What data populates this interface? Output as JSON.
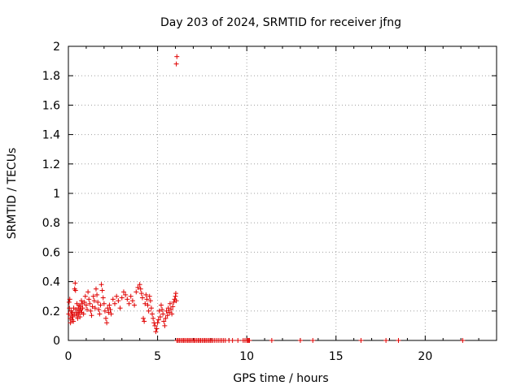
{
  "chart_data": {
    "type": "scatter",
    "title": "Day 203 of 2024, SRMTID for receiver jfng",
    "xlabel": "GPS time / hours",
    "ylabel": "SRMTID / TECUs",
    "xlim": [
      0,
      24
    ],
    "ylim": [
      0,
      2
    ],
    "xticks": [
      0,
      5,
      10,
      15,
      20
    ],
    "yticks": [
      0,
      0.2,
      0.4,
      0.6,
      0.8,
      1,
      1.2,
      1.4,
      1.6,
      1.8,
      2
    ],
    "grid": true,
    "marker": "+",
    "color": "#e00000",
    "series": [
      {
        "x": [
          0.02,
          0.04,
          0.06,
          0.08,
          0.1,
          0.12,
          0.15,
          0.18,
          0.2,
          0.22,
          0.25,
          0.28,
          0.3,
          0.33,
          0.35,
          0.38,
          0.4,
          0.42,
          0.45,
          0.48,
          0.5,
          0.52,
          0.55,
          0.58,
          0.6,
          0.63,
          0.65,
          0.68,
          0.7,
          0.73,
          0.75,
          0.78,
          0.8,
          0.85,
          0.9,
          0.95,
          1.0,
          1.05,
          1.1,
          1.15,
          1.2,
          1.25,
          1.3,
          1.35,
          1.4,
          1.45,
          1.5,
          1.55,
          1.6,
          1.65,
          1.7,
          1.75,
          1.8,
          1.85,
          1.9,
          1.95,
          2.0,
          2.05,
          2.1,
          2.15,
          2.2,
          2.25,
          2.3,
          2.35,
          2.4,
          2.5,
          2.6,
          2.7,
          2.8,
          2.9,
          3.0,
          3.1,
          3.2,
          3.3,
          3.4,
          3.5,
          3.6,
          3.7,
          3.8,
          3.9,
          4.0,
          4.05,
          4.1,
          4.15,
          4.2,
          4.25,
          4.3,
          4.35,
          4.4,
          4.45,
          4.5,
          4.55,
          4.6,
          4.65,
          4.7,
          4.75,
          4.8,
          4.85,
          4.9,
          4.95,
          5.0,
          5.05,
          5.1,
          5.15,
          5.2,
          5.25,
          5.3,
          5.35,
          5.4,
          5.45,
          5.5,
          5.55,
          5.6,
          5.65,
          5.7,
          5.75,
          5.8,
          5.85,
          5.9,
          5.95,
          6.0,
          6.02,
          6.05,
          6.08
        ],
        "y": [
          0.18,
          0.26,
          0.22,
          0.28,
          0.15,
          0.12,
          0.2,
          0.17,
          0.14,
          0.19,
          0.16,
          0.13,
          0.22,
          0.18,
          0.35,
          0.39,
          0.34,
          0.21,
          0.17,
          0.25,
          0.19,
          0.15,
          0.22,
          0.18,
          0.24,
          0.2,
          0.16,
          0.23,
          0.21,
          0.27,
          0.19,
          0.25,
          0.22,
          0.18,
          0.26,
          0.3,
          0.24,
          0.21,
          0.33,
          0.28,
          0.25,
          0.2,
          0.17,
          0.23,
          0.3,
          0.27,
          0.22,
          0.35,
          0.31,
          0.26,
          0.21,
          0.18,
          0.24,
          0.38,
          0.34,
          0.29,
          0.25,
          0.2,
          0.15,
          0.12,
          0.22,
          0.19,
          0.24,
          0.21,
          0.18,
          0.28,
          0.25,
          0.3,
          0.27,
          0.22,
          0.29,
          0.33,
          0.31,
          0.28,
          0.25,
          0.3,
          0.27,
          0.24,
          0.33,
          0.36,
          0.38,
          0.35,
          0.32,
          0.29,
          0.15,
          0.13,
          0.25,
          0.31,
          0.28,
          0.24,
          0.2,
          0.3,
          0.27,
          0.22,
          0.18,
          0.15,
          0.12,
          0.1,
          0.06,
          0.08,
          0.12,
          0.14,
          0.2,
          0.16,
          0.24,
          0.21,
          0.18,
          0.13,
          0.1,
          0.15,
          0.2,
          0.17,
          0.22,
          0.19,
          0.25,
          0.21,
          0.18,
          0.23,
          0.26,
          0.28,
          0.3,
          0.32,
          0.27,
          1.93
        ]
      },
      {
        "x": [
          6.05,
          6.08,
          6.15,
          6.22,
          6.3,
          6.38,
          6.45,
          6.52,
          6.6,
          6.68,
          6.75,
          6.82,
          6.9,
          6.98,
          7.05,
          7.12,
          7.2,
          7.28,
          7.35,
          7.42,
          7.5,
          7.58,
          7.65,
          7.72,
          7.8,
          7.88,
          7.95,
          8.02,
          8.1,
          8.2,
          8.3,
          8.4,
          8.5,
          8.6,
          8.7,
          8.8,
          9.0,
          9.2,
          9.5,
          9.8,
          9.9,
          10.0,
          10.05,
          10.1,
          10.15,
          11.4,
          13.0,
          13.7,
          16.4,
          17.8,
          18.5,
          22.1
        ],
        "y": [
          1.88,
          0,
          0,
          0,
          0,
          0,
          0,
          0,
          0,
          0,
          0,
          0,
          0,
          0,
          0,
          0,
          0,
          0,
          0,
          0,
          0,
          0,
          0,
          0,
          0,
          0,
          0,
          0,
          0,
          0,
          0,
          0,
          0,
          0,
          0,
          0,
          0,
          0,
          0,
          0,
          0,
          0,
          0,
          0,
          0,
          0,
          0,
          0,
          0,
          0,
          0,
          0
        ]
      }
    ]
  }
}
